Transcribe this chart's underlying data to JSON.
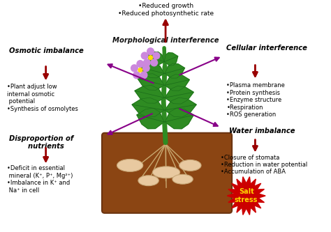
{
  "bg_color": "#ffffff",
  "stem_color": "#2E8B22",
  "leaf_color": "#2E8B22",
  "flower_petal": "#CC88DD",
  "flower_center": "#FFDD00",
  "soil_color": "#8B4513",
  "potato_color": "#E8C9A0",
  "root_color": "#C8A870",
  "arrow_dark_red": "#990000",
  "arrow_purple": "#880088",
  "salt_burst_color": "#CC0000",
  "salt_text_color": "#FFD700",
  "labels": {
    "top_text": "•Reduced growth\n•Reduced photosynthetic rate",
    "morph": "Morphological interference",
    "osmotic": "Osmotic imbalance",
    "cellular": "Cellular interference",
    "mid_left": "•Plant adjust low\ninternal osmotic\n potential\n•Synthesis of osmolytes",
    "disproportion": "Disproportion of\n    nutrients",
    "bot_left": "•Deficit in essential\n mineral (K⁺, P⁺, Mg²⁺)\n•Imbalance in K⁺ and\n Na⁺ in cell",
    "cellular_details": "•Plasma membrane\n•Protein synthesis\n•Enzyme structure\n•Respiration\n•ROS generation",
    "water": "Water imbalance",
    "water_details": "•Closure of stomata\n•Reduction in water potential\n•Accumulation of ABA",
    "salt": "Salt\nstress"
  }
}
